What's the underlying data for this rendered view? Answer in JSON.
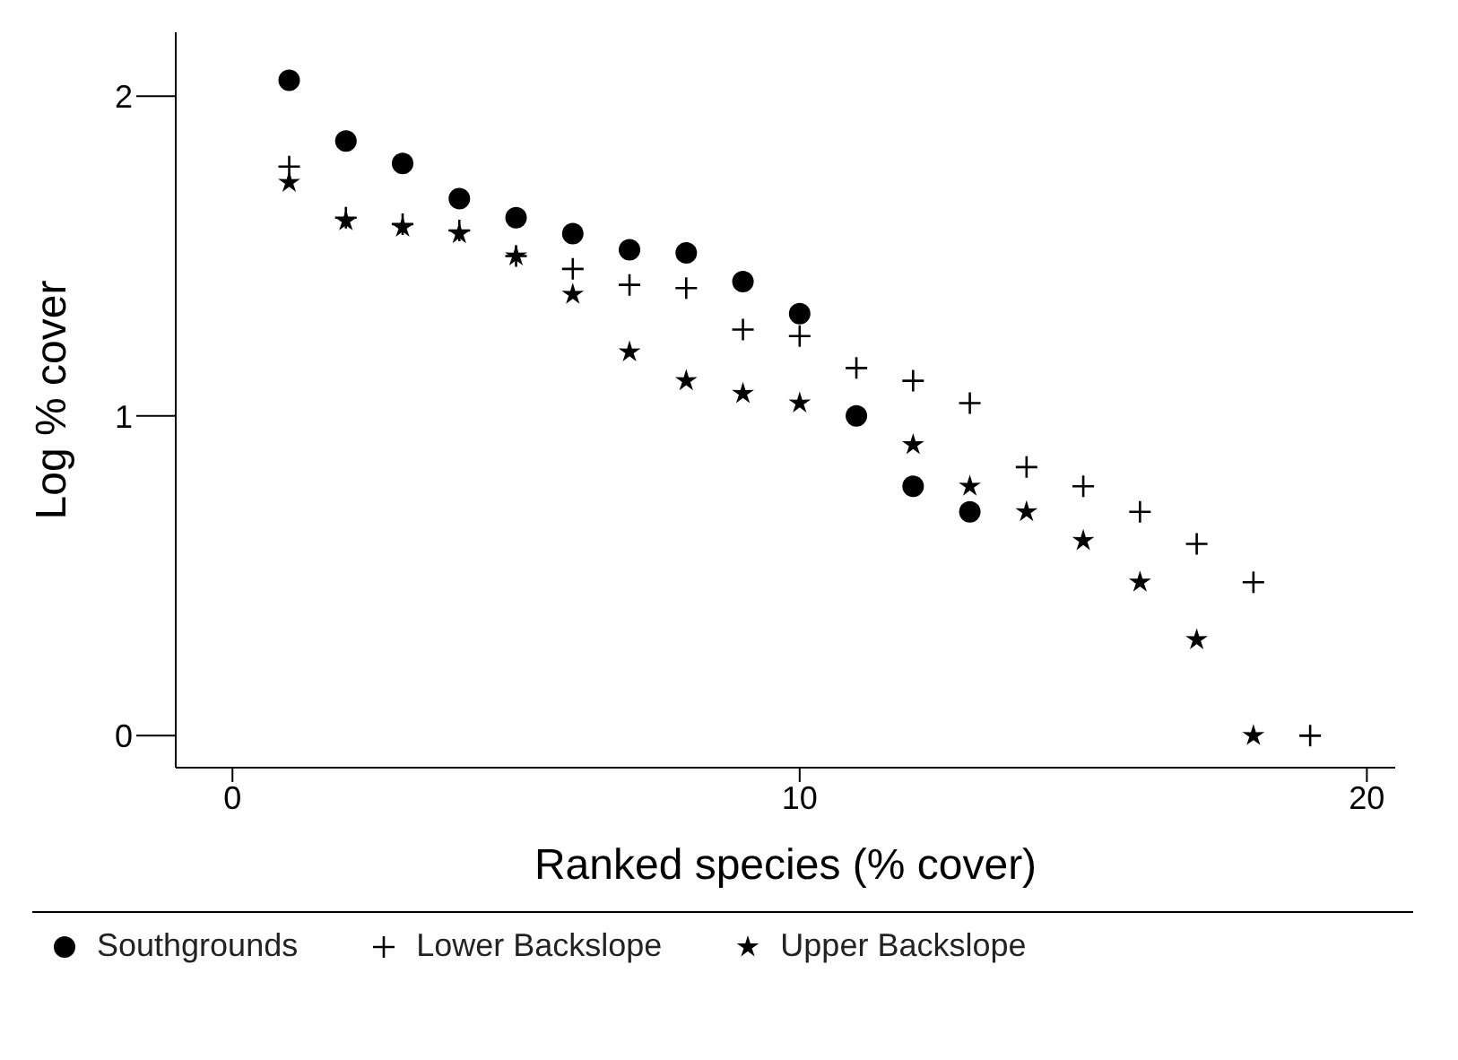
{
  "chart_data": {
    "type": "scatter",
    "xlabel": "Ranked species (% cover)",
    "ylabel": "Log % cover",
    "xlim": [
      -1,
      20.5
    ],
    "xticks": [
      0,
      10,
      20
    ],
    "ylim": [
      -0.1,
      2.2
    ],
    "yticks": [
      0,
      1,
      2
    ],
    "grid": false,
    "legend": "bottom",
    "series": [
      {
        "name": "Southgrounds",
        "color": "#000000",
        "marker": "circle",
        "x": [
          1,
          2,
          3,
          4,
          5,
          6,
          7,
          8,
          9,
          10,
          11,
          12,
          13
        ],
        "values": [
          2.05,
          1.86,
          1.79,
          1.68,
          1.62,
          1.57,
          1.52,
          1.51,
          1.42,
          1.32,
          1.0,
          0.78,
          0.7
        ]
      },
      {
        "name": "Lower Backslope",
        "color": "#000000",
        "marker": "cross",
        "x": [
          1,
          2,
          3,
          4,
          5,
          6,
          7,
          8,
          9,
          10,
          11,
          12,
          13,
          14,
          15,
          16,
          17,
          18,
          19
        ],
        "values": [
          1.78,
          1.62,
          1.6,
          1.58,
          1.5,
          1.46,
          1.41,
          1.4,
          1.27,
          1.25,
          1.15,
          1.11,
          1.04,
          0.84,
          0.78,
          0.7,
          0.6,
          0.48,
          0.0
        ]
      },
      {
        "name": "Upper Backslope",
        "color": "#000000",
        "marker": "star",
        "x": [
          1,
          2,
          3,
          4,
          5,
          6,
          7,
          8,
          9,
          10,
          12,
          13,
          14,
          15,
          16,
          17,
          18
        ],
        "values": [
          1.73,
          1.61,
          1.59,
          1.57,
          1.5,
          1.38,
          1.2,
          1.11,
          1.07,
          1.04,
          0.91,
          0.78,
          0.7,
          0.61,
          0.48,
          0.3,
          0.0
        ]
      }
    ]
  }
}
